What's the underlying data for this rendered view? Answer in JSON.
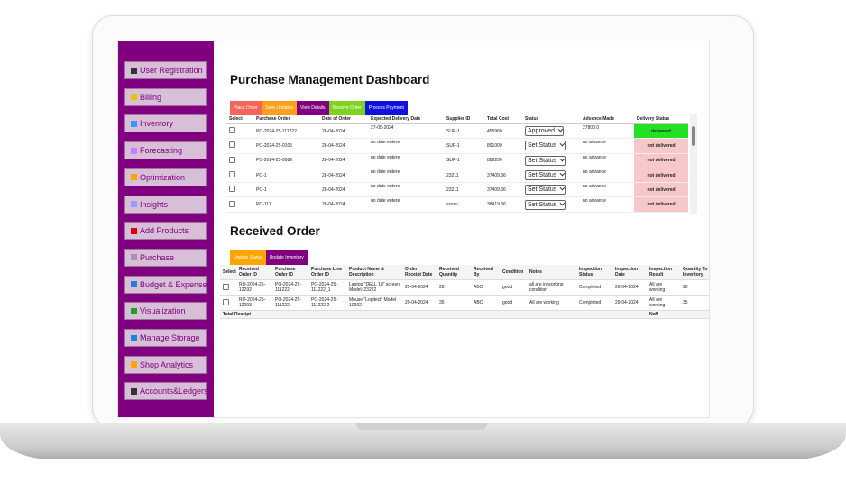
{
  "sidebar": {
    "items": [
      "User Registration",
      "Billing",
      "Inventory",
      "Forecasting",
      "Optimization",
      "Insights",
      "Add Products",
      "Purchase",
      "Budget & Expense",
      "Visualization",
      "Manage Storage",
      "Shop Analytics",
      "Accounts&Ledgers"
    ]
  },
  "purchase": {
    "title": "Purchase Management Dashboard",
    "buttons": [
      {
        "label": "Place Order",
        "color": "#f4665c"
      },
      {
        "label": "Save Updates",
        "color": "#ff9f1c"
      },
      {
        "label": "View Details",
        "color": "#800080"
      },
      {
        "label": "Receive Order",
        "color": "#7ed321"
      },
      {
        "label": "Process Payment",
        "color": "#1010e0"
      }
    ],
    "headers": [
      "Select",
      "Purchase Order",
      "Date of Order",
      "Expected Delivery Date",
      "Supplier ID",
      "Total Cost",
      "Status",
      "Advance Made",
      "Delivery Status"
    ],
    "rows": [
      [
        "PO-2024-25-111222",
        "28-04-2024",
        "27-05-2024",
        "SUP-1",
        "455960",
        "Approved",
        "27800.0",
        "delivered"
      ],
      [
        "PO-2024-25-0105",
        "28-04-2024",
        "no date entere",
        "SUP-1",
        "891000",
        "Set Status",
        "no advance",
        "not delivered"
      ],
      [
        "PO-2024-25-0089",
        "28-04-2024",
        "no date entere",
        "SUP-1",
        "889200",
        "Set Status",
        "no advance",
        "not delivered"
      ],
      [
        "PO-1",
        "28-04-2024",
        "no date entere",
        "23211",
        "37409.36",
        "Set Status",
        "no advance",
        "not delivered"
      ],
      [
        "PO-1",
        "28-04-2024",
        "no date entere",
        "23211",
        "37409.36",
        "Set Status",
        "no advance",
        "not delivered"
      ],
      [
        "PO-111",
        "28-04-2024",
        "no date entere",
        "ssssv",
        "38419.36",
        "Set Status",
        "no advance",
        "not delivered"
      ]
    ],
    "delivery_colors": [
      "#22e022",
      "#f8c8c8",
      "#f8c8c8",
      "#f8c8c8",
      "#f8c8c8",
      "#f8c8c8"
    ]
  },
  "received": {
    "title": "Received Order",
    "buttons": [
      {
        "label": "Update Status",
        "color": "#ffa500"
      },
      {
        "label": "Update Inventory",
        "color": "#800080"
      }
    ],
    "headers": [
      "Select",
      "Received Order ID",
      "Purchase Order ID",
      "Purchase Line Order ID",
      "Product Name & Description",
      "Order Receipt Date",
      "Received Quantity",
      "Received By",
      "Condition",
      "Notes",
      "Inspection Status",
      "Inspection Date",
      "Inspection Result",
      "Quantity To Inventory"
    ],
    "rows": [
      [
        "RO-2024-25-12292",
        "PO-2024-25-111222",
        "PO-2024-25-111222_1",
        "Laptop \"DELL 18\" screen Model: 23222",
        "29-04-2024",
        "28",
        "ABC",
        "good",
        "all are in working condition",
        "Completed",
        "29-04-2024",
        "All are working",
        "20"
      ],
      [
        "RO-2024-25-12293",
        "PO-2024-25-111222",
        "PO-2024-25-111222-2",
        "Mouse \"Logitech Model 10002",
        "29-04-2024",
        "35",
        "ABC",
        "good",
        "All are working",
        "Completed",
        "29-04-2024",
        "All are working",
        "35"
      ]
    ],
    "footer": {
      "label": "Total Receipt",
      "total": "NaN"
    }
  }
}
